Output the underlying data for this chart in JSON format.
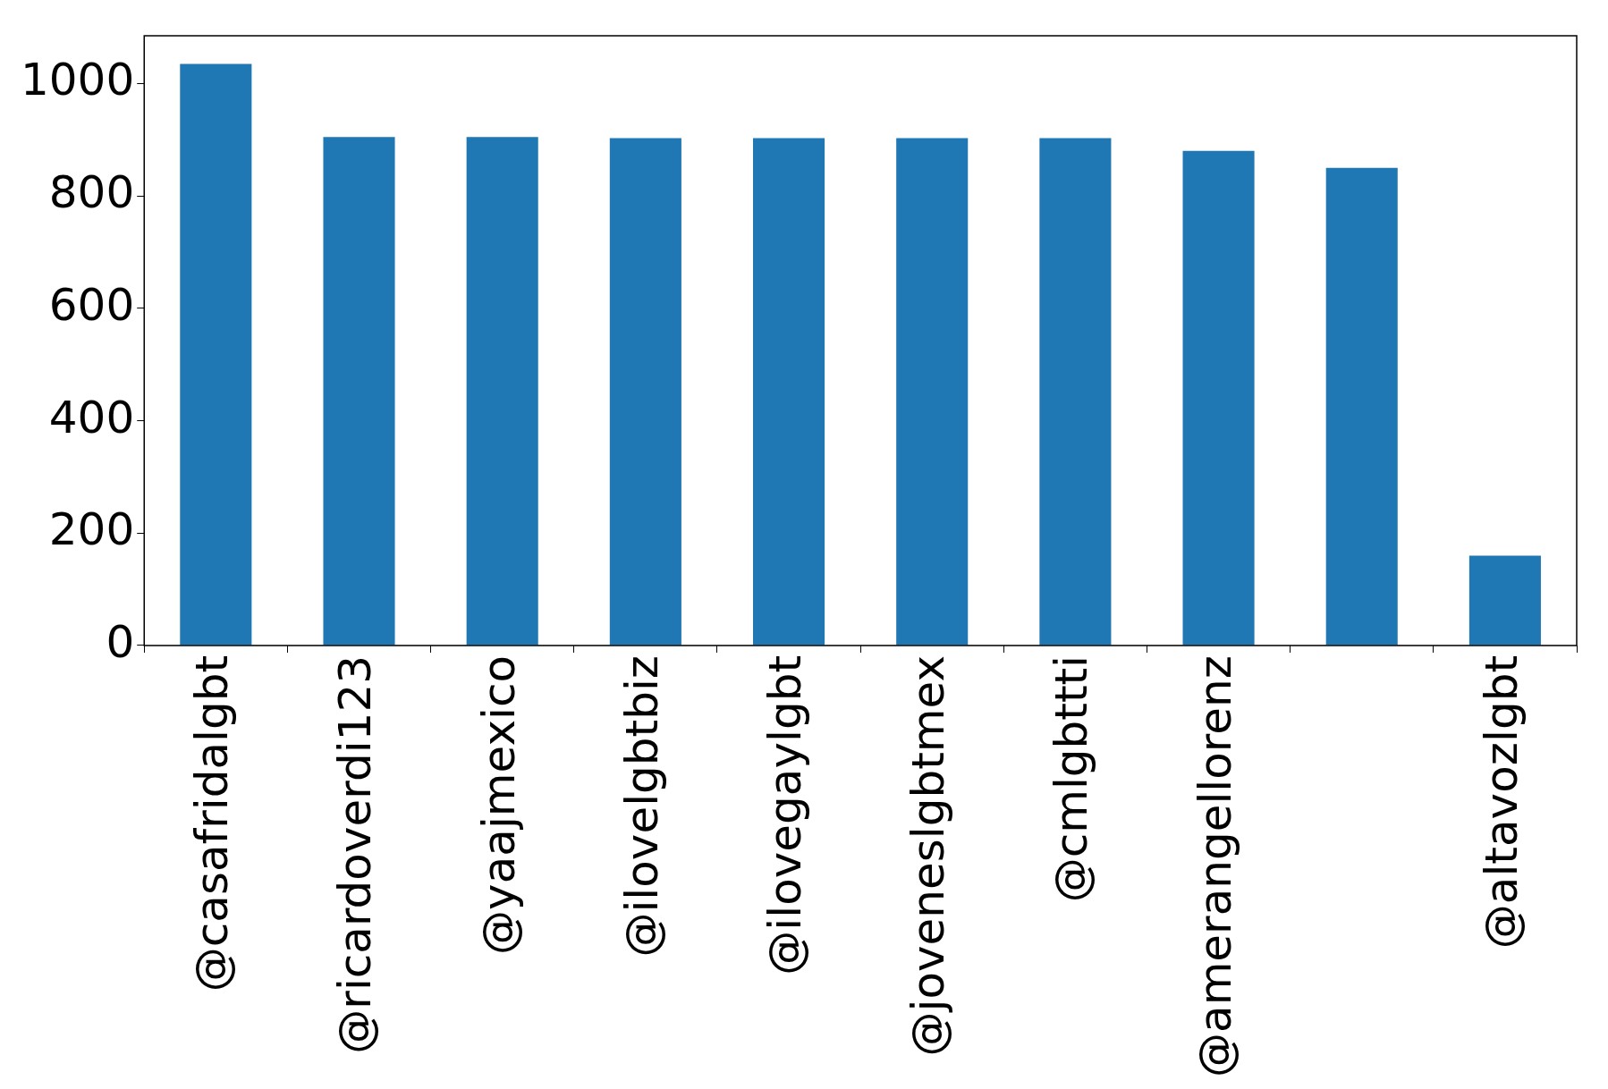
{
  "chart_data": {
    "type": "bar",
    "categories": [
      "@casafridalgbt",
      "@ricardoverdi123",
      "@yaajmexico",
      "@ilovelgbtbiz",
      "@ilovegaylgbt",
      "@joveneslgbtmex",
      "@cmlgbttti",
      "@amerangellorenz",
      null,
      "@altavozlgbt"
    ],
    "values": [
      1035,
      905,
      905,
      903,
      903,
      903,
      903,
      880,
      850,
      160
    ],
    "color": "#1f77b4",
    "ylim": [
      0,
      1085
    ],
    "yticks": [
      0,
      200,
      400,
      600,
      800,
      1000
    ],
    "grid": false
  }
}
